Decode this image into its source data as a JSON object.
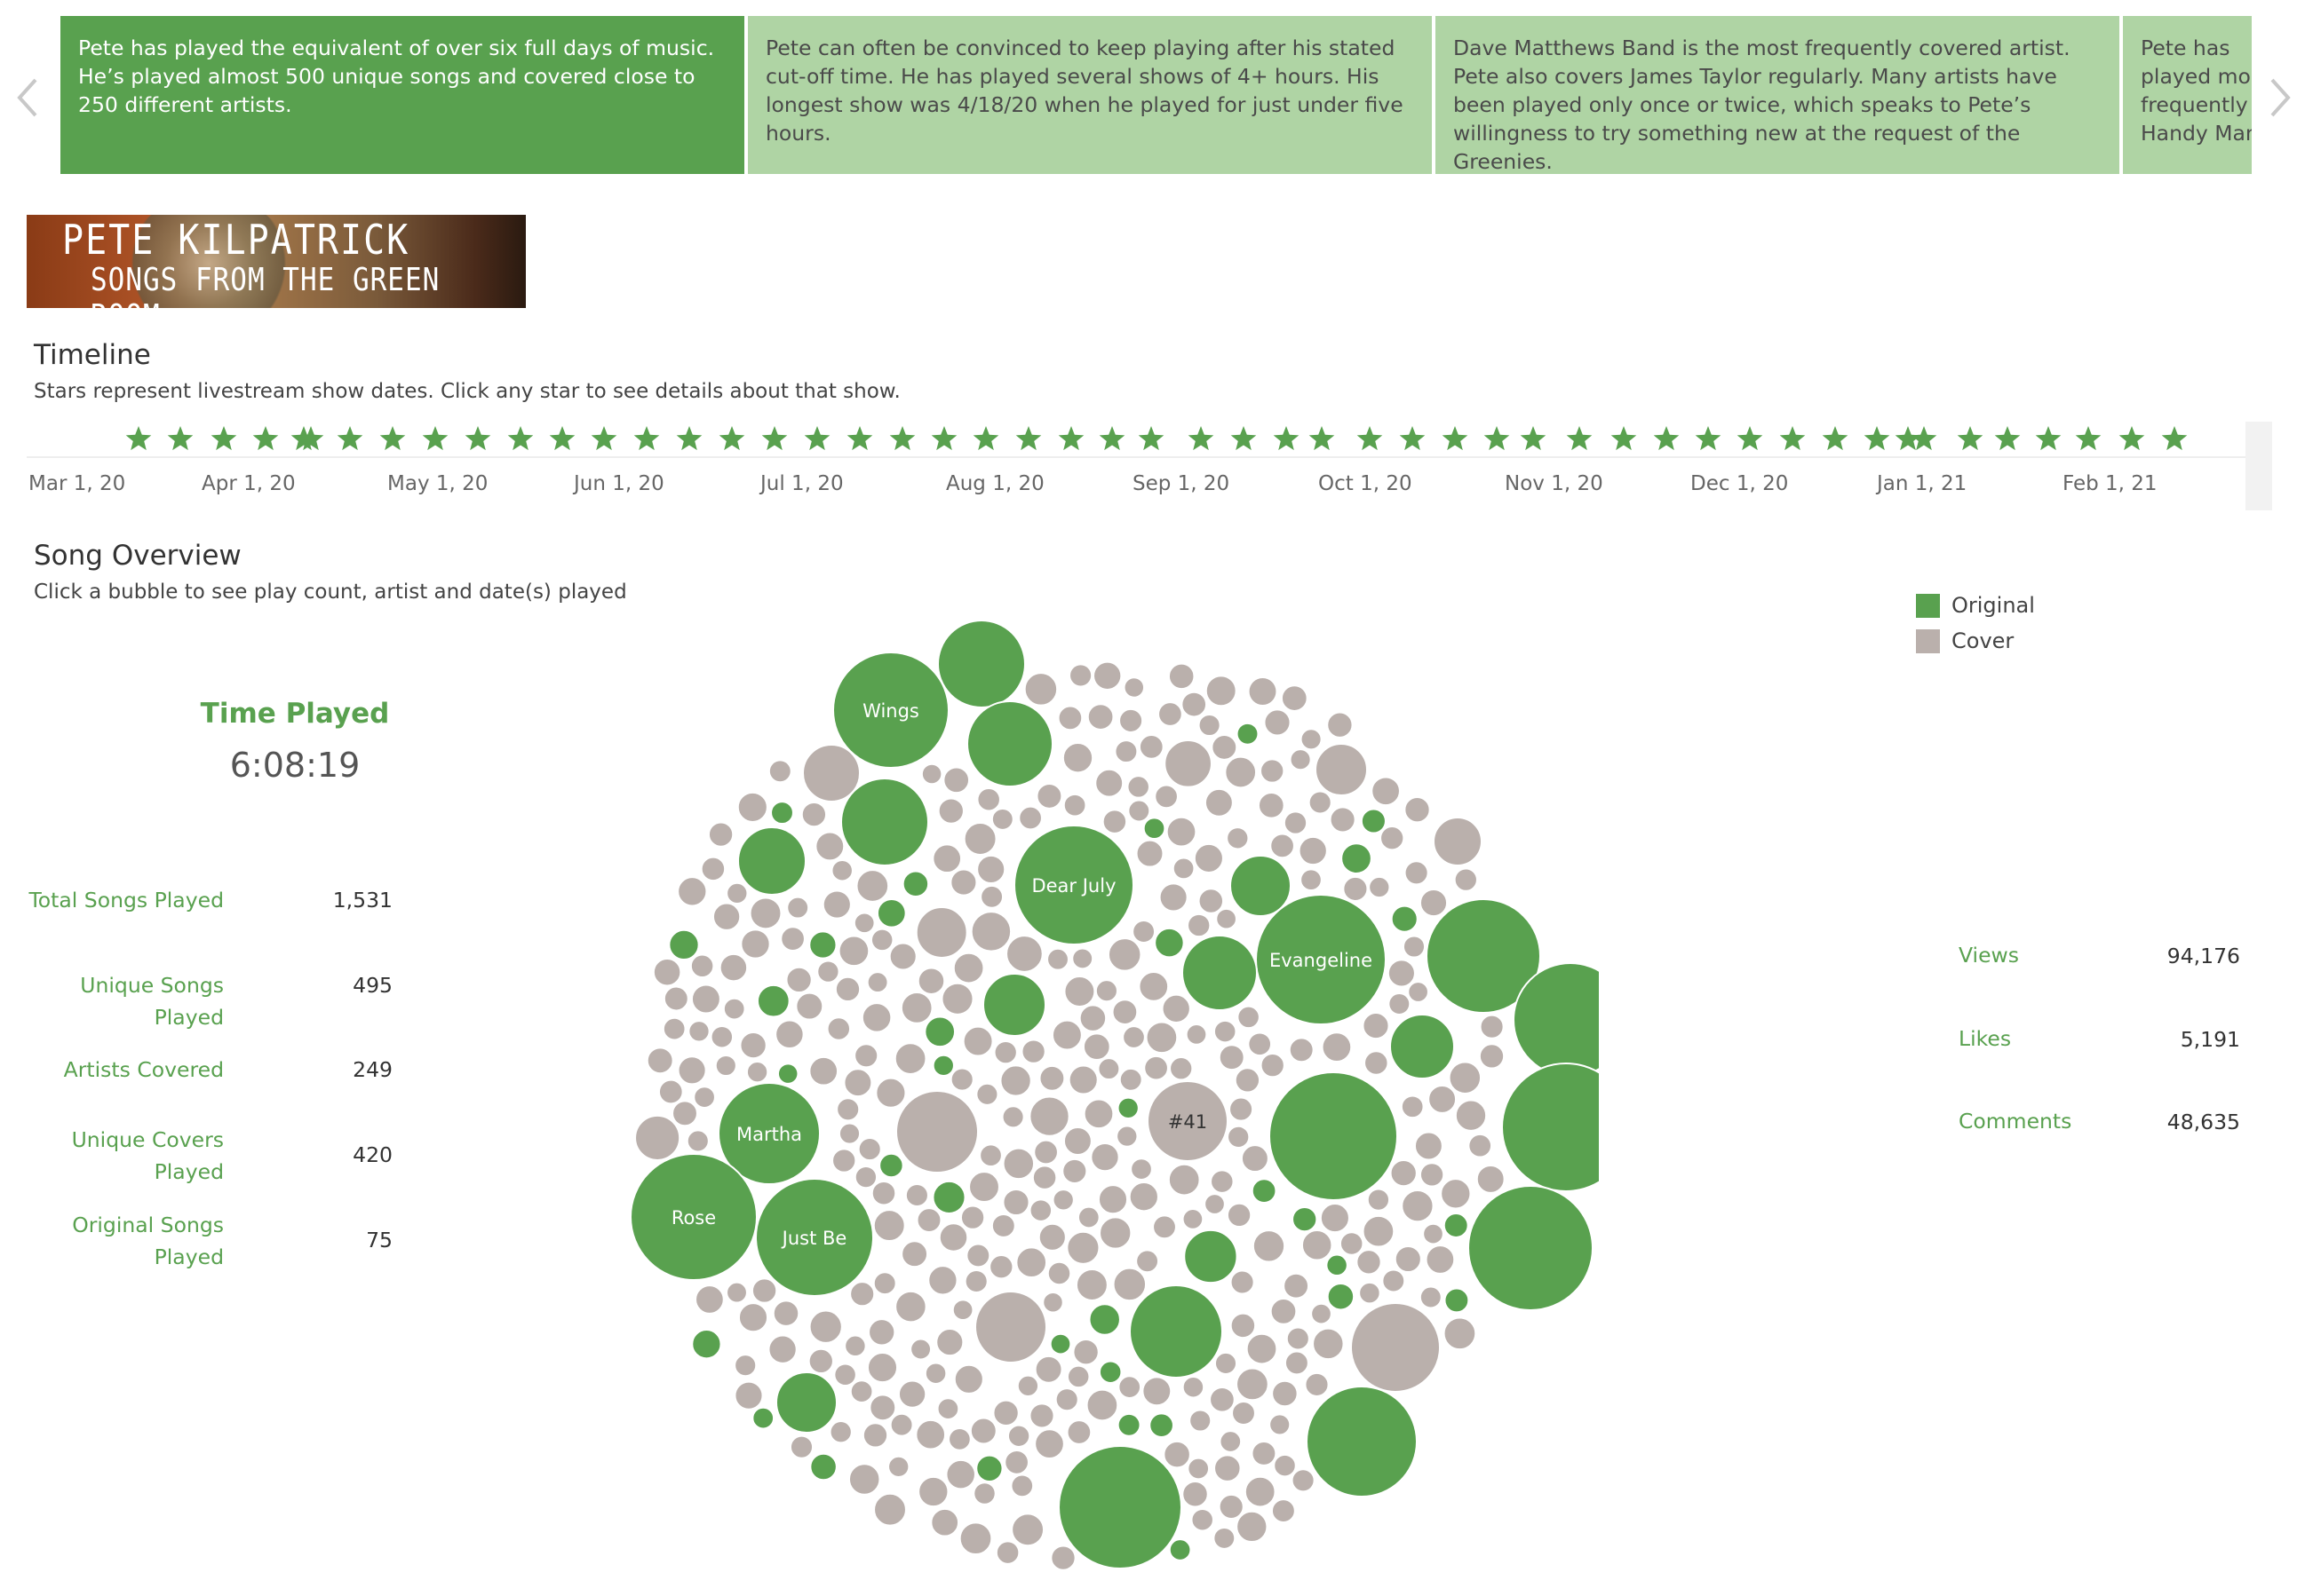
{
  "story": {
    "points": [
      "Pete has played the equivalent of over six full days of music. He’s played almost 500 unique songs and covered close to 250 different artists.",
      "Pete can often be convinced to keep playing after his stated cut-off time. He has played several shows of 4+ hours. His longest show was 4/18/20 when he played for just under five hours.",
      "Dave Matthews Band is the most frequently covered artist. Pete also covers James Taylor regularly. Many artists have been played only once or twice, which speaks to Pete’s willingness to try something new at the request of the Greenies.",
      "Pete has played most frequently Handy Man"
    ],
    "prev_icon": "chevron-left-icon",
    "next_icon": "chevron-right-icon"
  },
  "banner": {
    "line1": "PETE KILPATRICK",
    "line2": "SONGS FROM THE GREEN ROOM"
  },
  "timeline": {
    "title": "Timeline",
    "subtitle": "Stars represent livestream show dates. Click any star to see details about that show.",
    "axis_labels": [
      "Mar 1, 20",
      "Apr 1, 20",
      "May 1, 20",
      "Jun 1, 20",
      "Jul 1, 20",
      "Aug 1, 20",
      "Sep 1, 20",
      "Oct 1, 20",
      "Nov 1, 20",
      "Dec 1, 20",
      "Jan 1, 21",
      "Feb 1, 21"
    ],
    "star_icon": "star-icon",
    "star_color": "#59a14f"
  },
  "overview": {
    "title": "Song Overview",
    "subtitle": "Click a bubble to see play count, artist and date(s) played"
  },
  "legend": {
    "items": [
      {
        "label": "Original",
        "color": "#59a14f"
      },
      {
        "label": "Cover",
        "color": "#bab0ac"
      }
    ]
  },
  "time_played": {
    "label": "Time Played",
    "value": "6:08:19"
  },
  "stats": [
    {
      "label": "Total Songs Played",
      "value": "1,531"
    },
    {
      "label": "Unique Songs Played",
      "value": "495"
    },
    {
      "label": "Artists Covered",
      "value": "249"
    },
    {
      "label": "Unique Covers Played",
      "value": "420"
    },
    {
      "label": "Original Songs Played",
      "value": "75"
    }
  ],
  "engagement": [
    {
      "label": "Views",
      "value": "94,176"
    },
    {
      "label": "Likes",
      "value": "5,191"
    },
    {
      "label": "Comments",
      "value": "48,635"
    }
  ],
  "bubble_labels": {
    "wings": "Wings",
    "dear_july": "Dear July",
    "evangeline": "Evangeline",
    "martha": "Martha",
    "rose": "Rose",
    "just_be": "Just Be",
    "rank41": "#41"
  },
  "colors": {
    "original": "#59a14f",
    "cover": "#bab0ac",
    "story_active": "#59a14f",
    "story_inactive": "#afd4a4"
  }
}
